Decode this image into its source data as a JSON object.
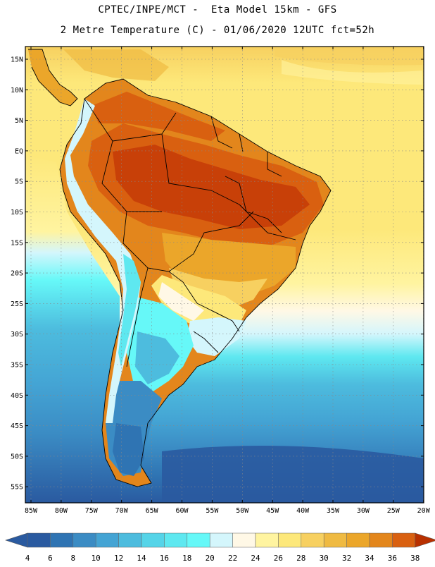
{
  "header": {
    "title_line1": "CPTEC/INPE/MCT -  Eta Model 15km - GFS",
    "title_line2": "2 Metre Temperature (C) - 01/06/2020 12UTC fct=52h"
  },
  "map": {
    "lat_labels": [
      "15N",
      "10N",
      "5N",
      "EQ",
      "5S",
      "10S",
      "15S",
      "20S",
      "25S",
      "30S",
      "35S",
      "40S",
      "45S",
      "50S",
      "55S"
    ],
    "lon_labels": [
      "85W",
      "80W",
      "75W",
      "70W",
      "65W",
      "60W",
      "55W",
      "50W",
      "45W",
      "40W",
      "35W",
      "30W",
      "25W",
      "20W"
    ],
    "grid": "dotted"
  },
  "legend": {
    "values": [
      "4",
      "6",
      "8",
      "10",
      "12",
      "14",
      "16",
      "18",
      "20",
      "22",
      "24",
      "26",
      "28",
      "30",
      "32",
      "34",
      "36",
      "38"
    ],
    "colors": [
      "#2a5aa0",
      "#2f74b3",
      "#3b8cc4",
      "#44a4d4",
      "#4dbcde",
      "#55d4e8",
      "#5ee8f0",
      "#66f8f8",
      "#d4f6fc",
      "#fff8e6",
      "#fff4a0",
      "#fde87a",
      "#f7d060",
      "#efba42",
      "#eba62a",
      "#e3861c",
      "#d96010",
      "#c84008",
      "#b83000"
    ],
    "arrow_left_color": "#2a5aa0",
    "arrow_right_color": "#b83000"
  }
}
